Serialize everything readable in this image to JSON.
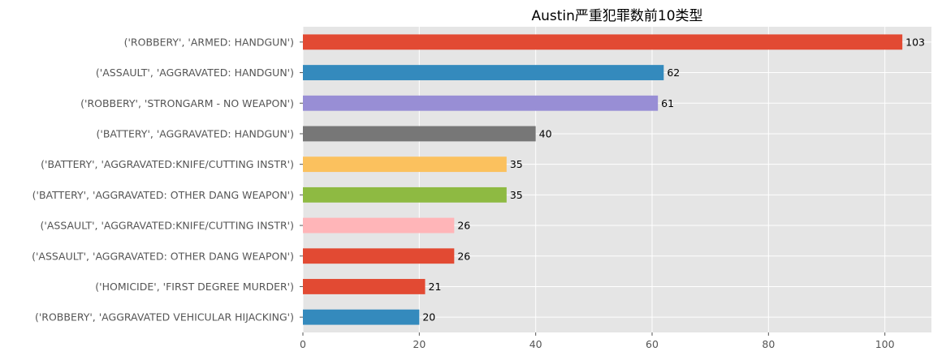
{
  "chart_data": {
    "type": "bar",
    "orientation": "horizontal",
    "title": "Austin严重犯罪数前10类型",
    "xlabel": "",
    "ylabel": "",
    "xlim": [
      0,
      108
    ],
    "xticks": [
      0,
      20,
      40,
      60,
      80,
      100
    ],
    "grid": true,
    "categories": [
      "('ROBBERY', 'ARMED: HANDGUN')",
      "('ASSAULT', 'AGGRAVATED: HANDGUN')",
      "('ROBBERY', 'STRONGARM - NO WEAPON')",
      "('BATTERY', 'AGGRAVATED: HANDGUN')",
      "('BATTERY', 'AGGRAVATED:KNIFE/CUTTING INSTR')",
      "('BATTERY', 'AGGRAVATED: OTHER DANG WEAPON')",
      "('ASSAULT', 'AGGRAVATED:KNIFE/CUTTING INSTR')",
      "('ASSAULT', 'AGGRAVATED: OTHER DANG WEAPON')",
      "('HOMICIDE', 'FIRST DEGREE MURDER')",
      "('ROBBERY', 'AGGRAVATED VEHICULAR HIJACKING')"
    ],
    "values": [
      103,
      62,
      61,
      40,
      35,
      35,
      26,
      26,
      21,
      20
    ],
    "colors": [
      "#E24A33",
      "#348ABD",
      "#988ED5",
      "#777777",
      "#FBC15E",
      "#8EBA42",
      "#FFB5B8",
      "#E24A33",
      "#E24A33",
      "#348ABD"
    ]
  }
}
